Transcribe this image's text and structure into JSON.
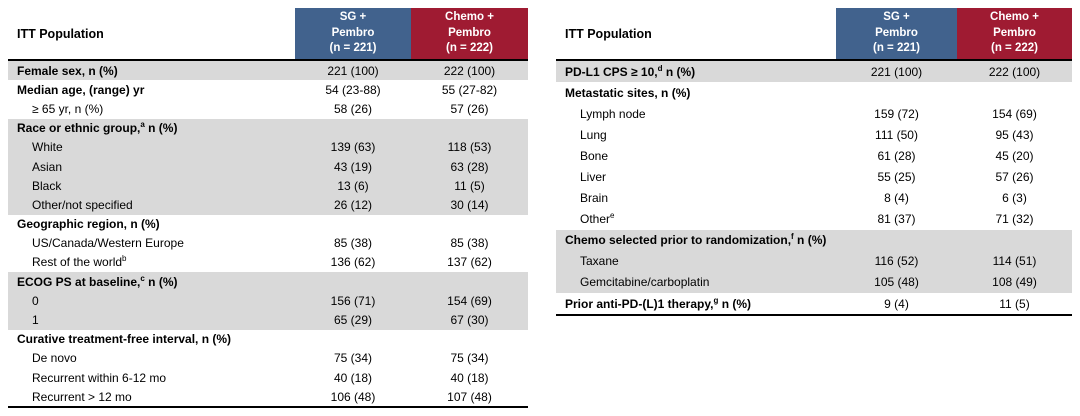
{
  "colors": {
    "header_blue": "#41628D",
    "header_red": "#9F1B32",
    "row_shade_gray": "#D9D9D9",
    "rule_black": "#000000"
  },
  "tables": [
    {
      "name": "itt-demographics-table",
      "population_label": "ITT Population",
      "columns": [
        "SG +\nPembro\n(n = 221)",
        "Chemo +\nPembro\n(n = 222)"
      ],
      "rows": [
        {
          "pre": "Female sex, n (%)",
          "bold": true,
          "shaded": true,
          "values": [
            "221 (100)",
            "222 (100)"
          ]
        },
        {
          "pre": "Median age, (range) yr",
          "bold": true,
          "values": [
            "54 (23-88)",
            "55 (27-82)"
          ]
        },
        {
          "pre": "≥ 65 yr, n (%)",
          "indent": true,
          "values": [
            "58 (26)",
            "57 (26)"
          ]
        },
        {
          "pre": "Race or ethnic group,",
          "sup": "a",
          "post": " n (%)",
          "bold": true,
          "shaded": true,
          "values": [
            "",
            ""
          ]
        },
        {
          "pre": "White",
          "indent": true,
          "shaded": true,
          "values": [
            "139 (63)",
            "118 (53)"
          ]
        },
        {
          "pre": "Asian",
          "indent": true,
          "shaded": true,
          "values": [
            "43 (19)",
            "63 (28)"
          ]
        },
        {
          "pre": "Black",
          "indent": true,
          "shaded": true,
          "values": [
            "13 (6)",
            "11 (5)"
          ]
        },
        {
          "pre": "Other/not specified",
          "indent": true,
          "shaded": true,
          "values": [
            "26 (12)",
            "30 (14)"
          ]
        },
        {
          "pre": "Geographic region, n (%)",
          "bold": true,
          "values": [
            "",
            ""
          ]
        },
        {
          "pre": "US/Canada/Western Europe",
          "indent": true,
          "values": [
            "85 (38)",
            "85 (38)"
          ]
        },
        {
          "pre": "Rest of the world",
          "sup": "b",
          "indent": true,
          "values": [
            "136 (62)",
            "137 (62)"
          ]
        },
        {
          "pre": "ECOG PS at baseline,",
          "sup": "c",
          "post": " n (%)",
          "bold": true,
          "shaded": true,
          "values": [
            "",
            ""
          ]
        },
        {
          "pre": "0",
          "indent": true,
          "shaded": true,
          "values": [
            "156 (71)",
            "154 (69)"
          ]
        },
        {
          "pre": "1",
          "indent": true,
          "shaded": true,
          "values": [
            "65 (29)",
            "67 (30)"
          ]
        },
        {
          "pre": "Curative treatment-free interval, n (%)",
          "bold": true,
          "values": [
            "",
            ""
          ]
        },
        {
          "pre": "De novo",
          "indent": true,
          "values": [
            "75 (34)",
            "75 (34)"
          ]
        },
        {
          "pre": "Recurrent within 6-12 mo",
          "indent": true,
          "values": [
            "40 (18)",
            "40 (18)"
          ]
        },
        {
          "pre": "Recurrent > 12 mo",
          "indent": true,
          "values": [
            "106 (48)",
            "107 (48)"
          ]
        }
      ]
    },
    {
      "name": "itt-disease-characteristics-table",
      "population_label": "ITT Population",
      "columns": [
        "SG +\nPembro\n(n = 221)",
        "Chemo +\nPembro\n(n = 222)"
      ],
      "rows": [
        {
          "pre": "PD-L1 CPS ≥ 10,",
          "sup": "d",
          "post": " n (%)",
          "bold": true,
          "shaded": true,
          "values": [
            "221 (100)",
            "222 (100)"
          ]
        },
        {
          "pre": "Metastatic sites, n (%)",
          "bold": true,
          "values": [
            "",
            ""
          ]
        },
        {
          "pre": "Lymph node",
          "indent": true,
          "values": [
            "159 (72)",
            "154 (69)"
          ]
        },
        {
          "pre": "Lung",
          "indent": true,
          "values": [
            "111 (50)",
            "95 (43)"
          ]
        },
        {
          "pre": "Bone",
          "indent": true,
          "values": [
            "61 (28)",
            "45 (20)"
          ]
        },
        {
          "pre": "Liver",
          "indent": true,
          "values": [
            "55 (25)",
            "57 (26)"
          ]
        },
        {
          "pre": "Brain",
          "indent": true,
          "values": [
            "8 (4)",
            "6 (3)"
          ]
        },
        {
          "pre": "Other",
          "sup": "e",
          "indent": true,
          "values": [
            "81 (37)",
            "71 (32)"
          ]
        },
        {
          "pre": "Chemo selected prior to randomization,",
          "sup": "f",
          "post": " n (%)",
          "bold": true,
          "shaded": true,
          "values": [
            "",
            ""
          ]
        },
        {
          "pre": "Taxane",
          "indent": true,
          "shaded": true,
          "values": [
            "116 (52)",
            "114 (51)"
          ]
        },
        {
          "pre": "Gemcitabine/carboplatin",
          "indent": true,
          "shaded": true,
          "values": [
            "105 (48)",
            "108 (49)"
          ]
        },
        {
          "pre": "Prior anti-PD-(L)1 therapy,",
          "sup": "g",
          "post": " n (%)",
          "bold": true,
          "values": [
            "9 (4)",
            "11 (5)"
          ]
        }
      ]
    }
  ]
}
